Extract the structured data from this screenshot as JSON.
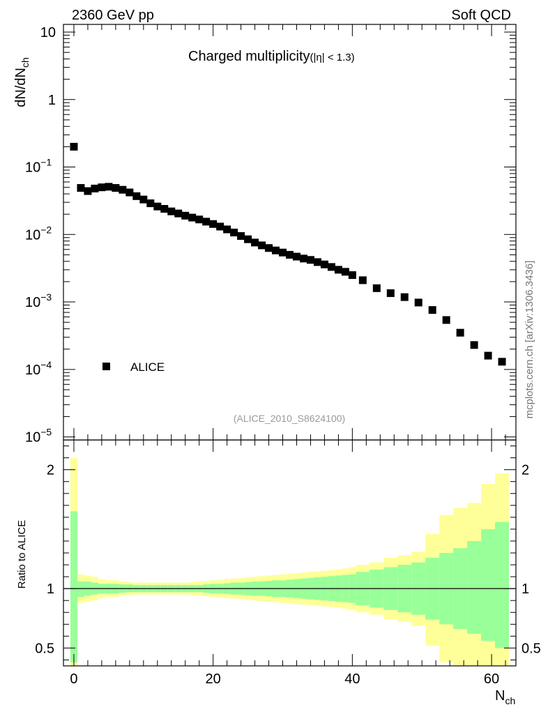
{
  "header": {
    "left": "2360 GeV pp",
    "right": "Soft QCD",
    "watermark": "mcplots.cern.ch [arXiv:1306.3436]"
  },
  "main_panel": {
    "title": "Charged multiplicity",
    "title_suffix": "(|η| < 1.3)",
    "analysis_id": "(ALICE_2010_S8624100)",
    "legend_label": "ALICE",
    "y_axis_label": "dN/dN",
    "y_axis_label_sub": "ch",
    "y_tick_labels": [
      {
        "base": "10",
        "exp": ""
      },
      {
        "base": "1",
        "exp": ""
      },
      {
        "base": "10",
        "exp": "−1"
      },
      {
        "base": "10",
        "exp": "−2"
      },
      {
        "base": "10",
        "exp": "−3"
      },
      {
        "base": "10",
        "exp": "−4"
      },
      {
        "base": "10",
        "exp": "−5"
      }
    ]
  },
  "ratio_panel": {
    "y_axis_label": "Ratio to ALICE",
    "y_tick_labels": [
      "2",
      "1",
      "0.5"
    ],
    "x_tick_labels": [
      "0",
      "20",
      "40",
      "60"
    ],
    "x_axis_label": "N",
    "x_axis_label_sub": "ch"
  },
  "colors": {
    "data_marker": "#000000",
    "band_inner": "#99ff99",
    "band_outer": "#ffff99"
  },
  "chart_data": {
    "type": "scatter",
    "title": "Charged multiplicity (|η| < 1.3)",
    "xlabel": "N_ch",
    "ylabel": "dN/dN_ch",
    "ylog": true,
    "ylim": [
      9e-06,
      13
    ],
    "xlim": [
      -1.5,
      63.5
    ],
    "series": [
      {
        "name": "ALICE",
        "x": [
          0,
          1,
          2,
          3,
          4,
          5,
          6,
          7,
          8,
          9,
          10,
          11,
          12,
          13,
          14,
          15,
          16,
          17,
          18,
          19,
          20,
          21,
          22,
          23,
          24,
          25,
          26,
          27,
          28,
          29,
          30,
          31,
          32,
          33,
          34,
          35,
          36,
          37,
          38,
          39,
          40,
          41.5,
          43.5,
          45.5,
          47.5,
          49.5,
          51.5,
          53.5,
          55.5,
          57.5,
          59.5,
          61.5
        ],
        "y": [
          0.2,
          0.049,
          0.044,
          0.048,
          0.05,
          0.051,
          0.049,
          0.046,
          0.042,
          0.037,
          0.033,
          0.029,
          0.026,
          0.024,
          0.022,
          0.0205,
          0.019,
          0.0178,
          0.0167,
          0.0155,
          0.0143,
          0.0131,
          0.0119,
          0.0107,
          0.0095,
          0.0085,
          0.0076,
          0.0069,
          0.0063,
          0.0058,
          0.0054,
          0.005,
          0.0047,
          0.0044,
          0.0042,
          0.0039,
          0.0036,
          0.0033,
          0.003,
          0.0028,
          0.0025,
          0.0021,
          0.0016,
          0.00135,
          0.00118,
          0.00098,
          0.00076,
          0.00054,
          0.00035,
          0.00023,
          0.00016,
          0.00013
        ]
      }
    ],
    "ratio": {
      "ylabel": "Ratio to ALICE",
      "ylim": [
        0.35,
        2.25
      ],
      "reference": 1,
      "bins": [
        [
          -0.5,
          0.5
        ],
        [
          0.5,
          1.5
        ],
        [
          1.5,
          2.5
        ],
        [
          2.5,
          3.5
        ],
        [
          3.5,
          4.5
        ],
        [
          4.5,
          5.5
        ],
        [
          5.5,
          6.5
        ],
        [
          6.5,
          7.5
        ],
        [
          7.5,
          8.5
        ],
        [
          8.5,
          9.5
        ],
        [
          9.5,
          10.5
        ],
        [
          10.5,
          11.5
        ],
        [
          11.5,
          12.5
        ],
        [
          12.5,
          13.5
        ],
        [
          13.5,
          14.5
        ],
        [
          14.5,
          15.5
        ],
        [
          15.5,
          16.5
        ],
        [
          16.5,
          17.5
        ],
        [
          17.5,
          18.5
        ],
        [
          18.5,
          19.5
        ],
        [
          19.5,
          20.5
        ],
        [
          20.5,
          21.5
        ],
        [
          21.5,
          22.5
        ],
        [
          22.5,
          23.5
        ],
        [
          23.5,
          24.5
        ],
        [
          24.5,
          25.5
        ],
        [
          25.5,
          26.5
        ],
        [
          26.5,
          27.5
        ],
        [
          27.5,
          28.5
        ],
        [
          28.5,
          29.5
        ],
        [
          29.5,
          30.5
        ],
        [
          30.5,
          31.5
        ],
        [
          31.5,
          32.5
        ],
        [
          32.5,
          33.5
        ],
        [
          33.5,
          34.5
        ],
        [
          34.5,
          35.5
        ],
        [
          35.5,
          36.5
        ],
        [
          36.5,
          37.5
        ],
        [
          37.5,
          38.5
        ],
        [
          38.5,
          39.5
        ],
        [
          39.5,
          40.5
        ],
        [
          40.5,
          42.5
        ],
        [
          42.5,
          44.5
        ],
        [
          44.5,
          46.5
        ],
        [
          46.5,
          48.5
        ],
        [
          48.5,
          50.5
        ],
        [
          50.5,
          52.5
        ],
        [
          52.5,
          54.5
        ],
        [
          54.5,
          56.5
        ],
        [
          56.5,
          58.5
        ],
        [
          58.5,
          60.5
        ],
        [
          60.5,
          62.5
        ]
      ],
      "inner_band": [
        [
          0.38,
          1.65
        ],
        [
          0.93,
          1.06
        ],
        [
          0.94,
          1.06
        ],
        [
          0.95,
          1.05
        ],
        [
          0.96,
          1.04
        ],
        [
          0.96,
          1.04
        ],
        [
          0.96,
          1.04
        ],
        [
          0.965,
          1.035
        ],
        [
          0.97,
          1.035
        ],
        [
          0.97,
          1.03
        ],
        [
          0.97,
          1.03
        ],
        [
          0.97,
          1.03
        ],
        [
          0.97,
          1.03
        ],
        [
          0.97,
          1.03
        ],
        [
          0.97,
          1.03
        ],
        [
          0.97,
          1.03
        ],
        [
          0.97,
          1.03
        ],
        [
          0.97,
          1.03
        ],
        [
          0.97,
          1.03
        ],
        [
          0.965,
          1.035
        ],
        [
          0.96,
          1.04
        ],
        [
          0.96,
          1.04
        ],
        [
          0.955,
          1.045
        ],
        [
          0.95,
          1.05
        ],
        [
          0.95,
          1.05
        ],
        [
          0.945,
          1.055
        ],
        [
          0.94,
          1.06
        ],
        [
          0.94,
          1.06
        ],
        [
          0.935,
          1.065
        ],
        [
          0.93,
          1.07
        ],
        [
          0.93,
          1.07
        ],
        [
          0.925,
          1.075
        ],
        [
          0.92,
          1.08
        ],
        [
          0.915,
          1.085
        ],
        [
          0.91,
          1.09
        ],
        [
          0.905,
          1.095
        ],
        [
          0.9,
          1.1
        ],
        [
          0.895,
          1.105
        ],
        [
          0.89,
          1.11
        ],
        [
          0.885,
          1.115
        ],
        [
          0.88,
          1.12
        ],
        [
          0.86,
          1.14
        ],
        [
          0.84,
          1.16
        ],
        [
          0.82,
          1.18
        ],
        [
          0.8,
          1.2
        ],
        [
          0.78,
          1.22
        ],
        [
          0.74,
          1.26
        ],
        [
          0.7,
          1.3
        ],
        [
          0.66,
          1.34
        ],
        [
          0.62,
          1.4
        ],
        [
          0.56,
          1.5
        ],
        [
          0.5,
          1.56
        ]
      ],
      "outer_band": [
        [
          0.35,
          2.1
        ],
        [
          0.88,
          1.12
        ],
        [
          0.89,
          1.11
        ],
        [
          0.9,
          1.1
        ],
        [
          0.92,
          1.08
        ],
        [
          0.93,
          1.07
        ],
        [
          0.93,
          1.07
        ],
        [
          0.94,
          1.06
        ],
        [
          0.945,
          1.055
        ],
        [
          0.95,
          1.05
        ],
        [
          0.95,
          1.05
        ],
        [
          0.95,
          1.05
        ],
        [
          0.95,
          1.05
        ],
        [
          0.95,
          1.05
        ],
        [
          0.95,
          1.05
        ],
        [
          0.95,
          1.05
        ],
        [
          0.95,
          1.05
        ],
        [
          0.945,
          1.055
        ],
        [
          0.94,
          1.06
        ],
        [
          0.935,
          1.065
        ],
        [
          0.93,
          1.07
        ],
        [
          0.925,
          1.075
        ],
        [
          0.92,
          1.08
        ],
        [
          0.915,
          1.085
        ],
        [
          0.91,
          1.09
        ],
        [
          0.905,
          1.095
        ],
        [
          0.9,
          1.1
        ],
        [
          0.895,
          1.105
        ],
        [
          0.89,
          1.11
        ],
        [
          0.885,
          1.115
        ],
        [
          0.88,
          1.12
        ],
        [
          0.875,
          1.125
        ],
        [
          0.87,
          1.13
        ],
        [
          0.865,
          1.135
        ],
        [
          0.86,
          1.14
        ],
        [
          0.855,
          1.145
        ],
        [
          0.85,
          1.15
        ],
        [
          0.845,
          1.155
        ],
        [
          0.84,
          1.16
        ],
        [
          0.83,
          1.17
        ],
        [
          0.82,
          1.18
        ],
        [
          0.8,
          1.2
        ],
        [
          0.78,
          1.22
        ],
        [
          0.74,
          1.26
        ],
        [
          0.72,
          1.28
        ],
        [
          0.69,
          1.31
        ],
        [
          0.52,
          1.46
        ],
        [
          0.38,
          1.62
        ],
        [
          0.35,
          1.68
        ],
        [
          0.35,
          1.72
        ],
        [
          0.35,
          1.88
        ],
        [
          0.35,
          1.97
        ]
      ]
    }
  }
}
